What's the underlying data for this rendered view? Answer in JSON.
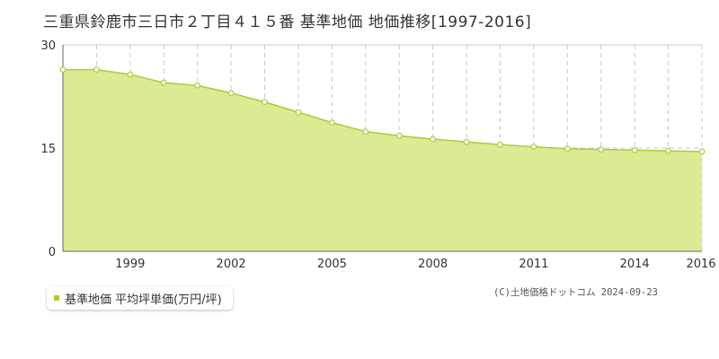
{
  "chart_data": {
    "type": "area",
    "title": "三重県鈴鹿市三日市２丁目４１５番 基準地価 地価推移[1997-2016]",
    "x": [
      1997,
      1998,
      1999,
      2000,
      2001,
      2002,
      2003,
      2004,
      2005,
      2006,
      2007,
      2008,
      2009,
      2010,
      2011,
      2012,
      2013,
      2014,
      2015,
      2016
    ],
    "series": [
      {
        "name": "基準地価 平均坪単価(万円/坪)",
        "values": [
          26.4,
          26.4,
          25.7,
          24.5,
          24.1,
          23.0,
          21.7,
          20.2,
          18.7,
          17.4,
          16.8,
          16.3,
          15.9,
          15.5,
          15.2,
          14.9,
          14.8,
          14.7,
          14.6,
          14.5
        ]
      }
    ],
    "x_tick_labels": [
      "1999",
      "2002",
      "2005",
      "2008",
      "2011",
      "2014",
      "2016"
    ],
    "y_tick_labels": [
      "30",
      "15",
      "0"
    ],
    "ylim": [
      0,
      30
    ],
    "xlim": [
      1997,
      2016
    ],
    "grid": true,
    "legend_position": "bottom-left",
    "colors": {
      "fill": "#dbeb94",
      "line": "#a8cc3a",
      "marker_fill": "#ffffff",
      "grid": "#c8c8c8",
      "axis": "#666666"
    }
  },
  "copyright": "(C)土地価格ドットコム 2024-09-23"
}
